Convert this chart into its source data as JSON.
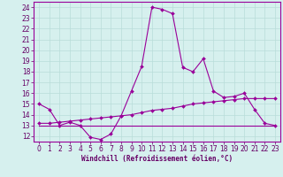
{
  "title": "",
  "xlabel": "Windchill (Refroidissement éolien,°C)",
  "ylabel": "",
  "background_color": "#d6f0ee",
  "grid_color": "#b8ddd9",
  "line_color": "#990099",
  "spine_color": "#990099",
  "tick_color": "#660066",
  "xlim": [
    -0.5,
    23.5
  ],
  "ylim": [
    11.5,
    24.5
  ],
  "yticks": [
    12,
    13,
    14,
    15,
    16,
    17,
    18,
    19,
    20,
    21,
    22,
    23,
    24
  ],
  "xticks": [
    0,
    1,
    2,
    3,
    4,
    5,
    6,
    7,
    8,
    9,
    10,
    11,
    12,
    13,
    14,
    15,
    16,
    17,
    18,
    19,
    20,
    21,
    22,
    23
  ],
  "series1_x": [
    0,
    1,
    2,
    3,
    4,
    5,
    6,
    7,
    8,
    9,
    10,
    11,
    12,
    13,
    14,
    15,
    16,
    17,
    18,
    19,
    20,
    21,
    22,
    23
  ],
  "series1_y": [
    15.0,
    14.5,
    13.0,
    13.3,
    13.0,
    11.9,
    11.7,
    12.2,
    13.9,
    16.2,
    18.5,
    24.0,
    23.8,
    23.4,
    18.4,
    18.0,
    19.2,
    16.2,
    15.6,
    15.7,
    16.0,
    14.5,
    13.2,
    13.0
  ],
  "series2_x": [
    0,
    1,
    2,
    3,
    4,
    5,
    6,
    7,
    8,
    9,
    10,
    11,
    12,
    13,
    14,
    15,
    16,
    17,
    18,
    19,
    20,
    21,
    22,
    23
  ],
  "series2_y": [
    13.0,
    13.0,
    13.0,
    13.0,
    13.0,
    13.0,
    13.0,
    13.0,
    13.0,
    13.0,
    13.0,
    13.0,
    13.0,
    13.0,
    13.0,
    13.0,
    13.0,
    13.0,
    13.0,
    13.0,
    13.0,
    13.0,
    13.0,
    13.0
  ],
  "series3_x": [
    0,
    1,
    2,
    3,
    4,
    5,
    6,
    7,
    8,
    9,
    10,
    11,
    12,
    13,
    14,
    15,
    16,
    17,
    18,
    19,
    20,
    21,
    22,
    23
  ],
  "series3_y": [
    13.2,
    13.2,
    13.3,
    13.4,
    13.5,
    13.6,
    13.7,
    13.8,
    13.9,
    14.0,
    14.2,
    14.4,
    14.5,
    14.6,
    14.8,
    15.0,
    15.1,
    15.2,
    15.3,
    15.4,
    15.5,
    15.5,
    15.5,
    15.5
  ],
  "xlabel_fontsize": 5.5,
  "tick_fontsize": 5.5
}
